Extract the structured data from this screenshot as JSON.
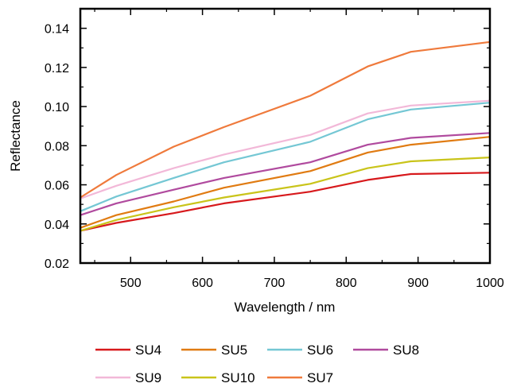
{
  "chart_data": {
    "type": "line",
    "xlabel": "Wavelength / nm",
    "ylabel": "Reflectance",
    "xlim": [
      430,
      1000
    ],
    "ylim": [
      0.02,
      0.15
    ],
    "x_ticks": [
      "500",
      "600",
      "700",
      "800",
      "900",
      "1000"
    ],
    "y_ticks": [
      "0.02",
      "0.04",
      "0.06",
      "0.08",
      "0.10",
      "0.12",
      "0.14"
    ],
    "x": [
      430,
      480,
      560,
      630,
      750,
      830,
      890,
      1000
    ],
    "grid": false,
    "legend_position": "bottom",
    "series": [
      {
        "name": "SU4",
        "color": "#d7191c",
        "values": [
          0.0365,
          0.0405,
          0.0455,
          0.0505,
          0.0565,
          0.0625,
          0.0655,
          0.0662
        ]
      },
      {
        "name": "SU5",
        "color": "#e07b12",
        "values": [
          0.038,
          0.0445,
          0.0515,
          0.0585,
          0.067,
          0.0765,
          0.0805,
          0.0845
        ]
      },
      {
        "name": "SU6",
        "color": "#74c7d4",
        "values": [
          0.0465,
          0.054,
          0.0635,
          0.0715,
          0.082,
          0.0935,
          0.0985,
          0.102
        ]
      },
      {
        "name": "SU8",
        "color": "#b04a9e",
        "values": [
          0.0445,
          0.0505,
          0.0575,
          0.0635,
          0.0715,
          0.0805,
          0.084,
          0.0865
        ]
      },
      {
        "name": "SU9",
        "color": "#f2b8d8",
        "values": [
          0.053,
          0.0595,
          0.0685,
          0.0755,
          0.0855,
          0.0965,
          0.1005,
          0.103
        ]
      },
      {
        "name": "SU10",
        "color": "#c9c41a",
        "values": [
          0.0365,
          0.042,
          0.0485,
          0.0535,
          0.0605,
          0.0685,
          0.072,
          0.074
        ]
      },
      {
        "name": "SU7",
        "color": "#ef7a3c",
        "values": [
          0.0535,
          0.065,
          0.0795,
          0.0895,
          0.1055,
          0.1205,
          0.128,
          0.133
        ]
      }
    ]
  }
}
